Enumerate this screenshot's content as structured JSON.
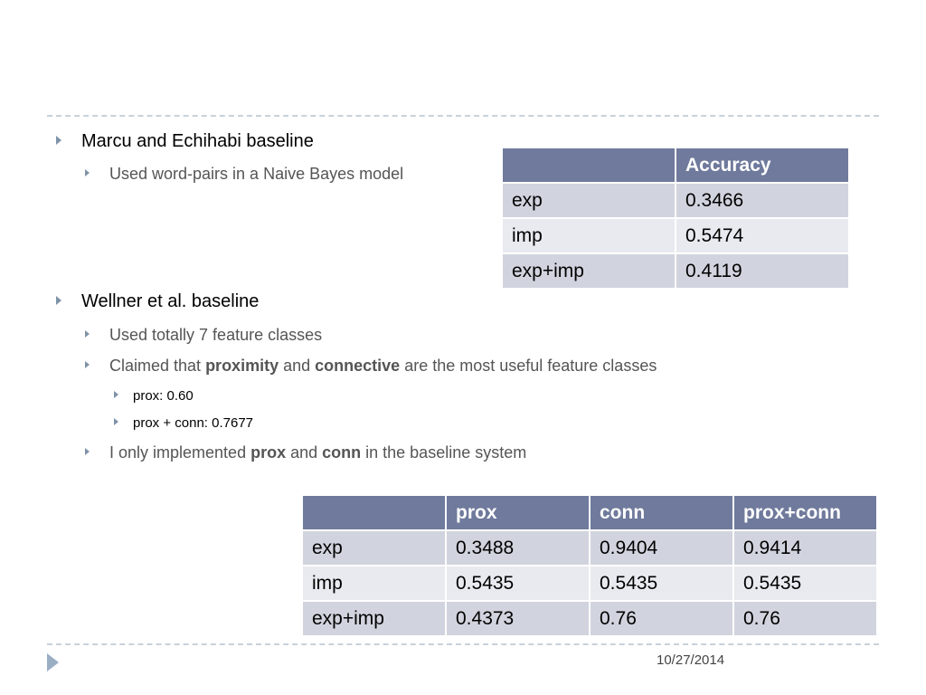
{
  "bullets": {
    "b1": "Marcu and Echihabi baseline",
    "b1_1": "Used word-pairs in a Naive Bayes model",
    "b2": "Wellner et al. baseline",
    "b2_1": "Used totally 7 feature classes",
    "b2_2": {
      "pre": "Claimed that ",
      "bold1": "proximity",
      "mid": " and ",
      "bold2": "connective",
      "post": " are the most useful feature classes"
    },
    "b2_2_1": "prox: 0.60",
    "b2_2_2": "prox + conn: 0.7677",
    "b2_3": {
      "pre": "I only implemented ",
      "bold1": "prox",
      "mid": " and ",
      "bold2": "conn",
      "post": " in the baseline system"
    }
  },
  "table1": {
    "headers": [
      "",
      "Accuracy"
    ],
    "rows": [
      [
        "exp",
        "0.3466"
      ],
      [
        "imp",
        "0.5474"
      ],
      [
        "exp+imp",
        "0.4119"
      ]
    ]
  },
  "table2": {
    "headers": [
      "",
      "prox",
      "conn",
      "prox+conn"
    ],
    "rows": [
      [
        "exp",
        "0.3488",
        "0.9404",
        "0.9414"
      ],
      [
        "imp",
        "0.5435",
        "0.5435",
        "0.5435"
      ],
      [
        "exp+imp",
        "0.4373",
        "0.76",
        "0.76"
      ]
    ]
  },
  "footer": {
    "date": "10/27/2014"
  },
  "colors": {
    "header": "#6f7a9c",
    "row_odd": "#d1d4de",
    "row_even": "#e9eaef",
    "bullet": "#7f93a8"
  }
}
